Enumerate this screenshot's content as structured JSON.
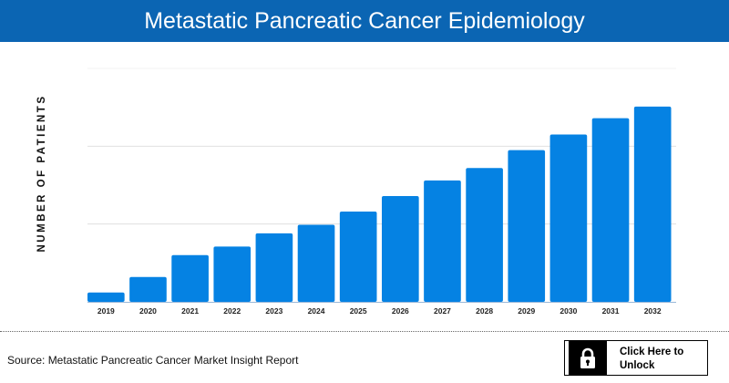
{
  "header": {
    "title": "Metastatic Pancreatic Cancer Epidemiology"
  },
  "chart_data": {
    "type": "bar",
    "title": "Metastatic Pancreatic Cancer Epidemiology",
    "xlabel": "",
    "ylabel": "NUMBER OF PATIENTS",
    "categories": [
      "2019",
      "2020",
      "2021",
      "2022",
      "2023",
      "2024",
      "2025",
      "2026",
      "2027",
      "2028",
      "2029",
      "2030",
      "2031",
      "2032"
    ],
    "values": [
      0.12,
      0.32,
      0.6,
      0.71,
      0.88,
      0.99,
      1.16,
      1.36,
      1.56,
      1.72,
      1.95,
      2.15,
      2.36,
      2.51
    ],
    "ylim": [
      0,
      3
    ],
    "grid": true,
    "y_tick_labels_shown": false,
    "bar_color": "#0582e3"
  },
  "footer": {
    "source": "Source: Metastatic Pancreatic Cancer Market Insight Report",
    "unlock_label": "Click Here to Unlock",
    "unlock_icon": "lock-icon"
  }
}
